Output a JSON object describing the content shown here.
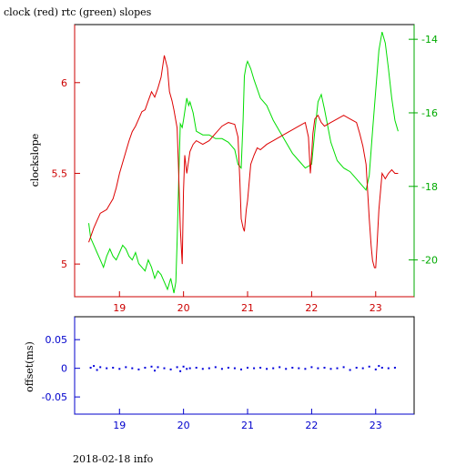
{
  "header": {
    "title": "clock (red) rtc (green) slopes"
  },
  "footer": {
    "text": "2018-02-18 info"
  },
  "colors": {
    "clock": "#dd0000",
    "rtc": "#00dd00",
    "offset": "#0000dd",
    "axis_red": "#cc0000",
    "axis_green": "#00aa00",
    "axis_blue": "#0000cc"
  },
  "chart_data": [
    {
      "type": "line",
      "title": "clock (red) rtc (green) slopes",
      "ylabel": "clockslope",
      "xlim": [
        18.3,
        23.6
      ],
      "ylim": [
        4.82,
        6.32
      ],
      "y2lim": [
        -21.0,
        -13.6
      ],
      "x_ticks": [
        19,
        20,
        21,
        22,
        23
      ],
      "y_ticks": [
        5,
        5.5,
        6
      ],
      "y2_ticks": [
        -14,
        -16,
        -18,
        -20
      ],
      "x_tick_labels": [
        "19",
        "20",
        "21",
        "22",
        "23"
      ],
      "y_tick_labels": [
        "5",
        "5.5",
        "6"
      ],
      "y2_tick_labels": [
        "-14",
        "-16",
        "-18",
        "-20"
      ],
      "grid": false,
      "series": [
        {
          "name": "clock",
          "axis": "left",
          "x": [
            18.52,
            18.55,
            18.6,
            18.65,
            18.7,
            18.75,
            18.8,
            18.85,
            18.9,
            18.95,
            19.0,
            19.05,
            19.1,
            19.15,
            19.2,
            19.25,
            19.3,
            19.35,
            19.4,
            19.45,
            19.5,
            19.55,
            19.6,
            19.65,
            19.7,
            19.75,
            19.78,
            19.82,
            19.85,
            19.9,
            19.92,
            19.95,
            19.98,
            20.0,
            20.02,
            20.05,
            20.1,
            20.15,
            20.2,
            20.3,
            20.4,
            20.5,
            20.6,
            20.7,
            20.8,
            20.85,
            20.88,
            20.9,
            20.93,
            20.95,
            20.98,
            21.0,
            21.05,
            21.1,
            21.15,
            21.2,
            21.3,
            21.4,
            21.5,
            21.6,
            21.7,
            21.8,
            21.9,
            21.95,
            21.98,
            22.0,
            22.02,
            22.05,
            22.1,
            22.15,
            22.2,
            22.3,
            22.4,
            22.5,
            22.6,
            22.7,
            22.75,
            22.8,
            22.85,
            22.9,
            22.93,
            22.95,
            22.98,
            23.0,
            23.02,
            23.05,
            23.08,
            23.1,
            23.15,
            23.2,
            23.25,
            23.3,
            23.35
          ],
          "y": [
            5.12,
            5.15,
            5.2,
            5.24,
            5.28,
            5.29,
            5.3,
            5.33,
            5.36,
            5.42,
            5.5,
            5.56,
            5.62,
            5.68,
            5.73,
            5.76,
            5.8,
            5.84,
            5.85,
            5.9,
            5.95,
            5.92,
            5.97,
            6.03,
            6.15,
            6.08,
            5.95,
            5.9,
            5.85,
            5.75,
            5.55,
            5.2,
            5.0,
            5.4,
            5.6,
            5.5,
            5.62,
            5.66,
            5.68,
            5.66,
            5.68,
            5.72,
            5.76,
            5.78,
            5.77,
            5.7,
            5.45,
            5.25,
            5.2,
            5.18,
            5.3,
            5.35,
            5.55,
            5.6,
            5.64,
            5.63,
            5.66,
            5.68,
            5.7,
            5.72,
            5.74,
            5.76,
            5.78,
            5.7,
            5.5,
            5.6,
            5.72,
            5.8,
            5.82,
            5.78,
            5.76,
            5.78,
            5.8,
            5.82,
            5.8,
            5.78,
            5.72,
            5.65,
            5.55,
            5.25,
            5.1,
            5.02,
            4.98,
            4.98,
            5.1,
            5.3,
            5.42,
            5.5,
            5.47,
            5.5,
            5.52,
            5.5,
            5.5
          ]
        },
        {
          "name": "rtc",
          "axis": "right",
          "x": [
            18.52,
            18.55,
            18.6,
            18.65,
            18.7,
            18.75,
            18.8,
            18.85,
            18.9,
            18.95,
            19.0,
            19.05,
            19.1,
            19.15,
            19.2,
            19.25,
            19.3,
            19.35,
            19.4,
            19.45,
            19.5,
            19.55,
            19.6,
            19.65,
            19.7,
            19.75,
            19.8,
            19.85,
            19.88,
            19.9,
            19.93,
            19.95,
            19.98,
            20.0,
            20.05,
            20.08,
            20.1,
            20.15,
            20.2,
            20.3,
            20.4,
            20.5,
            20.6,
            20.7,
            20.8,
            20.85,
            20.9,
            20.93,
            20.95,
            20.98,
            21.0,
            21.05,
            21.1,
            21.2,
            21.3,
            21.4,
            21.5,
            21.6,
            21.7,
            21.8,
            21.9,
            22.0,
            22.05,
            22.1,
            22.15,
            22.2,
            22.3,
            22.4,
            22.5,
            22.6,
            22.7,
            22.8,
            22.85,
            22.9,
            22.95,
            23.0,
            23.05,
            23.1,
            23.15,
            23.2,
            23.25,
            23.3,
            23.35
          ],
          "y": [
            -19.0,
            -19.4,
            -19.6,
            -19.8,
            -20.0,
            -20.2,
            -19.9,
            -19.7,
            -19.9,
            -20.0,
            -19.8,
            -19.6,
            -19.7,
            -19.9,
            -20.0,
            -19.8,
            -20.1,
            -20.2,
            -20.3,
            -20.0,
            -20.2,
            -20.5,
            -20.3,
            -20.4,
            -20.6,
            -20.8,
            -20.5,
            -20.9,
            -20.6,
            -19.5,
            -17.5,
            -16.3,
            -16.4,
            -16.2,
            -15.6,
            -15.8,
            -15.7,
            -16.0,
            -16.5,
            -16.6,
            -16.6,
            -16.7,
            -16.7,
            -16.8,
            -17.0,
            -17.4,
            -17.5,
            -16.2,
            -15.0,
            -14.7,
            -14.6,
            -14.8,
            -15.1,
            -15.6,
            -15.8,
            -16.2,
            -16.5,
            -16.8,
            -17.1,
            -17.3,
            -17.5,
            -17.4,
            -16.5,
            -15.7,
            -15.5,
            -15.9,
            -16.8,
            -17.3,
            -17.5,
            -17.6,
            -17.8,
            -18.0,
            -18.1,
            -17.7,
            -16.5,
            -15.4,
            -14.3,
            -13.8,
            -14.1,
            -14.8,
            -15.6,
            -16.2,
            -16.5
          ]
        }
      ]
    },
    {
      "type": "scatter",
      "ylabel": "offset(ms)",
      "xlim": [
        18.3,
        23.6
      ],
      "ylim": [
        -0.08,
        0.09
      ],
      "x_ticks": [
        19,
        20,
        21,
        22,
        23
      ],
      "y_ticks": [
        0.05,
        0,
        -0.05
      ],
      "x_tick_labels": [
        "19",
        "20",
        "21",
        "22",
        "23"
      ],
      "y_tick_labels": [
        "0.05",
        "0",
        "-0.05"
      ],
      "grid": false,
      "series": [
        {
          "name": "offset",
          "x": [
            18.55,
            18.6,
            18.65,
            18.7,
            18.8,
            18.9,
            19.0,
            19.1,
            19.2,
            19.3,
            19.4,
            19.5,
            19.55,
            19.6,
            19.7,
            19.8,
            19.9,
            19.95,
            20.0,
            20.05,
            20.1,
            20.2,
            20.3,
            20.4,
            20.5,
            20.6,
            20.7,
            20.8,
            20.9,
            21.0,
            21.1,
            21.2,
            21.3,
            21.4,
            21.5,
            21.6,
            21.7,
            21.8,
            21.9,
            22.0,
            22.1,
            22.2,
            22.3,
            22.4,
            22.5,
            22.6,
            22.7,
            22.8,
            22.9,
            23.0,
            23.05,
            23.1,
            23.2,
            23.3
          ],
          "y": [
            0.001,
            0.004,
            -0.003,
            0.002,
            0.0,
            0.001,
            -0.001,
            0.002,
            0.0,
            -0.002,
            0.001,
            0.003,
            -0.004,
            0.002,
            0.0,
            -0.002,
            0.002,
            -0.005,
            0.003,
            -0.001,
            0.0,
            0.001,
            -0.001,
            0.0,
            0.002,
            -0.001,
            0.001,
            0.0,
            -0.002,
            0.001,
            0.0,
            0.001,
            -0.001,
            0.0,
            0.002,
            -0.001,
            0.001,
            0.0,
            -0.001,
            0.002,
            0.0,
            0.001,
            -0.001,
            0.0,
            0.002,
            -0.003,
            0.001,
            0.0,
            0.003,
            -0.002,
            0.004,
            0.001,
            0.0,
            0.001
          ]
        }
      ]
    }
  ]
}
